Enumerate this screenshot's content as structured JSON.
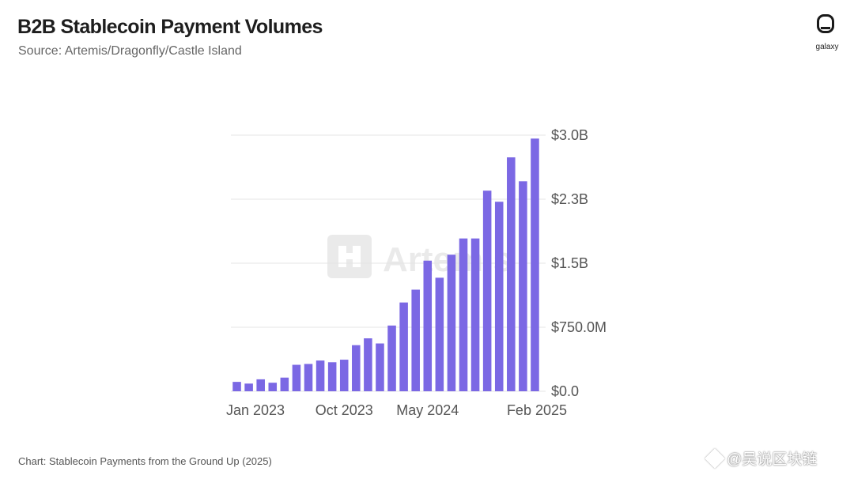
{
  "title": "B2B Stablecoin Payment Volumes",
  "subtitle": "Source: Artemis/Dragonfly/Castle Island",
  "logo": {
    "icon": "galaxy-logo-icon",
    "text": "galaxy"
  },
  "watermark": {
    "text": "Artemis",
    "icon": "artemis-logo-icon"
  },
  "footer": "Chart: Stablecoin Payments from the Ground Up (2025)",
  "handle": {
    "icon": "diamond-icon",
    "text": "@吴说区块链"
  },
  "colors": {
    "bar": "#7b68e4",
    "grid": "#e4e4e4",
    "text": "#555555"
  },
  "chart_data": {
    "type": "bar",
    "title": "B2B Stablecoin Payment Volumes",
    "x": [
      "Jan 2023",
      "Feb 2023",
      "Mar 2023",
      "Apr 2023",
      "May 2023",
      "Jun 2023",
      "Jul 2023",
      "Aug 2023",
      "Sep 2023",
      "Oct 2023",
      "Nov 2023",
      "Dec 2023",
      "Jan 2024",
      "Feb 2024",
      "Mar 2024",
      "Apr 2024",
      "May 2024",
      "Jun 2024",
      "Jul 2024",
      "Aug 2024",
      "Sep 2024",
      "Oct 2024",
      "Nov 2024",
      "Dec 2024",
      "Jan 2025",
      "Feb 2025"
    ],
    "x_tick_labels": [
      "Jan 2023",
      "Oct 2023",
      "May 2024",
      "Feb 2025"
    ],
    "x_tick_values": [
      "Jan 2023",
      "Oct 2023",
      "May 2024",
      "Feb 2025"
    ],
    "values": [
      0.11,
      0.09,
      0.14,
      0.1,
      0.16,
      0.31,
      0.32,
      0.36,
      0.34,
      0.37,
      0.54,
      0.62,
      0.56,
      0.77,
      1.04,
      1.19,
      1.53,
      1.33,
      1.6,
      1.79,
      1.79,
      2.35,
      2.22,
      2.74,
      2.46,
      2.96
    ],
    "unit": "USD billions",
    "y_ticks": [
      0,
      0.75,
      1.5,
      2.25,
      3.0
    ],
    "y_tick_labels": [
      "$0.0",
      "$750.0M",
      "$1.5B",
      "$2.3B",
      "$3.0B"
    ],
    "ylim": [
      0,
      3.0
    ],
    "grid": true,
    "y_axis_side": "right"
  }
}
